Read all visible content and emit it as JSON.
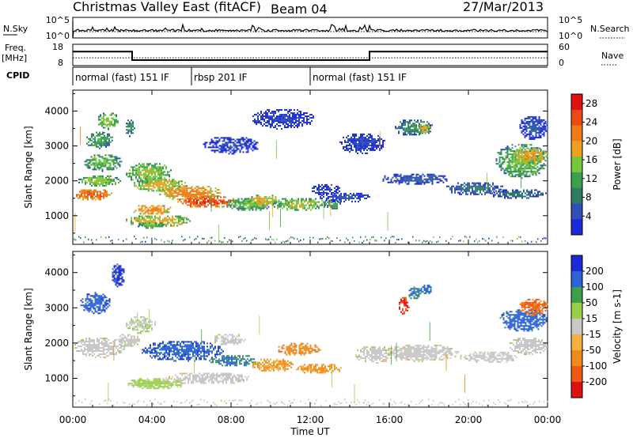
{
  "header": {
    "station": "Christmas Valley East (fitACF)",
    "beam": "Beam 04",
    "date": "27/Mar/2013"
  },
  "nsky_panel": {
    "left_label": "N.Sky",
    "left_ticks": [
      "10^5",
      "10^0"
    ],
    "right_ticks": [
      "10^5",
      "10^0"
    ],
    "right_label": "N.Search",
    "right_legend_style": "dotted"
  },
  "freq_panel": {
    "left_label": "Freq.",
    "left_unit": "[MHz]",
    "left_ticks": [
      "18",
      "8"
    ],
    "right_ticks": [
      "60",
      "0"
    ],
    "right_label": "Nave",
    "right_legend_style": "dotted",
    "freq_steps": [
      {
        "t_start": 0,
        "t_end": 3,
        "mhz": 14.6
      },
      {
        "t_start": 3,
        "t_end": 15,
        "mhz": 10.6
      },
      {
        "t_start": 15,
        "t_end": 24,
        "mhz": 14.6
      }
    ],
    "nave_level": 22
  },
  "cpid_panel": {
    "label": "CPID",
    "segments": [
      {
        "start_hour": 0,
        "end_hour": 6,
        "name": "normal (fast) 151 IF"
      },
      {
        "start_hour": 6,
        "end_hour": 12,
        "name": "rbsp 201 IF"
      },
      {
        "start_hour": 12,
        "end_hour": 24,
        "name": "normal (fast) 151 IF"
      }
    ]
  },
  "time_axis": {
    "xlabel": "Time UT",
    "ticks": [
      "00:00",
      "04:00",
      "08:00",
      "12:00",
      "16:00",
      "20:00",
      "00:00"
    ],
    "range_hours": [
      0,
      24
    ]
  },
  "chart_data": [
    {
      "type": "heatmap",
      "parameter": "Power",
      "ylabel": "Slant Range [km]",
      "y_ticks": [
        1000,
        2000,
        3000,
        4000
      ],
      "ylim": [
        180,
        4600
      ],
      "colorbar_label": "Power [dB]",
      "colorbar_ticks": [
        4,
        8,
        12,
        16,
        20,
        24,
        28
      ],
      "colorbar_range": [
        0,
        30
      ],
      "colors": [
        "#1a2ad8",
        "#2f4fb4",
        "#2e7a62",
        "#3aa04c",
        "#78c83c",
        "#f0a020",
        "#f07a18",
        "#ec4a14",
        "#e01010"
      ],
      "regions": [
        {
          "t": [
            0.0,
            2.0
          ],
          "r": [
            1450,
            1800
          ],
          "v": 24
        },
        {
          "t": [
            0.2,
            2.4
          ],
          "r": [
            1850,
            2200
          ],
          "v": 16
        },
        {
          "t": [
            0.5,
            2.5
          ],
          "r": [
            2300,
            2800
          ],
          "v": 14
        },
        {
          "t": [
            0.6,
            2.0
          ],
          "r": [
            2950,
            3450
          ],
          "v": 12
        },
        {
          "t": [
            1.2,
            2.3
          ],
          "r": [
            3500,
            4000
          ],
          "v": 16
        },
        {
          "t": [
            2.6,
            3.1
          ],
          "r": [
            3300,
            3800
          ],
          "v": 10
        },
        {
          "t": [
            2.6,
            5.0
          ],
          "r": [
            1950,
            2550
          ],
          "v": 16
        },
        {
          "t": [
            3.0,
            5.8
          ],
          "r": [
            1700,
            2100
          ],
          "v": 18
        },
        {
          "t": [
            4.3,
            7.5
          ],
          "r": [
            1450,
            1900
          ],
          "v": 22
        },
        {
          "t": [
            5.2,
            8.3
          ],
          "r": [
            1250,
            1600
          ],
          "v": 26
        },
        {
          "t": [
            7.7,
            10.0
          ],
          "r": [
            1150,
            1550
          ],
          "v": 14
        },
        {
          "t": [
            2.9,
            5.0
          ],
          "r": [
            1050,
            1350
          ],
          "v": 22
        },
        {
          "t": [
            2.6,
            6.0
          ],
          "r": [
            700,
            1050
          ],
          "v": 18
        },
        {
          "t": [
            3.2,
            4.6
          ],
          "r": [
            650,
            850
          ],
          "v": 14
        },
        {
          "t": [
            8.7,
            10.4
          ],
          "r": [
            1250,
            1650
          ],
          "v": 18
        },
        {
          "t": [
            10.0,
            12.8
          ],
          "r": [
            1150,
            1550
          ],
          "v": 16
        },
        {
          "t": [
            12.6,
            13.6
          ],
          "r": [
            1200,
            1500
          ],
          "v": 12
        },
        {
          "t": [
            12.0,
            13.5
          ],
          "r": [
            1600,
            1950
          ],
          "v": 4
        },
        {
          "t": [
            12.4,
            15.0
          ],
          "r": [
            1400,
            1700
          ],
          "v": 6
        },
        {
          "t": [
            6.5,
            9.5
          ],
          "r": [
            2800,
            3300
          ],
          "v": 4
        },
        {
          "t": [
            9.0,
            12.2
          ],
          "r": [
            3500,
            4100
          ],
          "v": 4
        },
        {
          "t": [
            13.4,
            15.8
          ],
          "r": [
            2800,
            3400
          ],
          "v": 4
        },
        {
          "t": [
            16.2,
            18.2
          ],
          "r": [
            3300,
            3800
          ],
          "v": 10
        },
        {
          "t": [
            17.3,
            18.1
          ],
          "r": [
            3350,
            3650
          ],
          "v": 18
        },
        {
          "t": [
            15.5,
            19.0
          ],
          "r": [
            1900,
            2250
          ],
          "v": 6
        },
        {
          "t": [
            18.8,
            21.8
          ],
          "r": [
            1600,
            2000
          ],
          "v": 8
        },
        {
          "t": [
            21.0,
            24.0
          ],
          "r": [
            1500,
            1800
          ],
          "v": 8
        },
        {
          "t": [
            21.3,
            24.0
          ],
          "r": [
            2100,
            3100
          ],
          "v": 14
        },
        {
          "t": [
            22.2,
            24.0
          ],
          "r": [
            2500,
            3000
          ],
          "v": 20
        },
        {
          "t": [
            22.5,
            24.0
          ],
          "r": [
            3200,
            3900
          ],
          "v": 6
        }
      ]
    },
    {
      "type": "heatmap",
      "parameter": "Velocity",
      "ylabel": "Slant Range [km]",
      "y_ticks": [
        1000,
        2000,
        3000,
        4000
      ],
      "ylim": [
        180,
        4600
      ],
      "colorbar_label": "Velocity [m s-1]",
      "colorbar_ticks": [
        200,
        100,
        50,
        15,
        -15,
        -50,
        -100,
        -200
      ],
      "colorbar_range": [
        -250,
        250
      ],
      "colors": [
        "#1a2ad8",
        "#2a64d8",
        "#3aa04c",
        "#9ad048",
        "#c8c8c8",
        "#f4b040",
        "#f08a18",
        "#ec5a14",
        "#e01010"
      ],
      "regions": [
        {
          "t": [
            0.0,
            2.6
          ],
          "r": [
            1600,
            2200
          ],
          "v": 0
        },
        {
          "t": [
            2.2,
            3.4
          ],
          "r": [
            1900,
            2300
          ],
          "v": 0
        },
        {
          "t": [
            0.3,
            1.9
          ],
          "r": [
            2850,
            3450
          ],
          "v": 180
        },
        {
          "t": [
            1.9,
            2.6
          ],
          "r": [
            3600,
            4300
          ],
          "v": 200
        },
        {
          "t": [
            2.6,
            4.2
          ],
          "r": [
            2300,
            2800
          ],
          "v": 20
        },
        {
          "t": [
            3.4,
            7.6
          ],
          "r": [
            1500,
            2100
          ],
          "v": 180
        },
        {
          "t": [
            6.8,
            9.3
          ],
          "r": [
            1350,
            1700
          ],
          "v": 140
        },
        {
          "t": [
            2.7,
            5.7
          ],
          "r": [
            700,
            1050
          ],
          "v": 40
        },
        {
          "t": [
            4.6,
            9.0
          ],
          "r": [
            850,
            1200
          ],
          "v": 0
        },
        {
          "t": [
            9.0,
            11.2
          ],
          "r": [
            1200,
            1600
          ],
          "v": -80
        },
        {
          "t": [
            10.3,
            12.5
          ],
          "r": [
            1650,
            2050
          ],
          "v": -120
        },
        {
          "t": [
            11.2,
            13.6
          ],
          "r": [
            1150,
            1450
          ],
          "v": -90
        },
        {
          "t": [
            7.0,
            8.7
          ],
          "r": [
            1950,
            2300
          ],
          "v": 0
        },
        {
          "t": [
            14.2,
            16.2
          ],
          "r": [
            1450,
            1950
          ],
          "v": 0
        },
        {
          "t": [
            15.7,
            19.5
          ],
          "r": [
            1500,
            2000
          ],
          "v": 0
        },
        {
          "t": [
            19.5,
            22.5
          ],
          "r": [
            1450,
            1800
          ],
          "v": 0
        },
        {
          "t": [
            22.0,
            24.0
          ],
          "r": [
            1700,
            2200
          ],
          "v": 0
        },
        {
          "t": [
            16.4,
            17.0
          ],
          "r": [
            2850,
            3350
          ],
          "v": -200
        },
        {
          "t": [
            16.9,
            17.6
          ],
          "r": [
            3250,
            3650
          ],
          "v": 140
        },
        {
          "t": [
            17.5,
            18.1
          ],
          "r": [
            3400,
            3700
          ],
          "v": 160
        },
        {
          "t": [
            21.5,
            24.0
          ],
          "r": [
            2350,
            3000
          ],
          "v": 170
        },
        {
          "t": [
            22.5,
            24.0
          ],
          "r": [
            2800,
            3300
          ],
          "v": -140
        }
      ]
    }
  ]
}
